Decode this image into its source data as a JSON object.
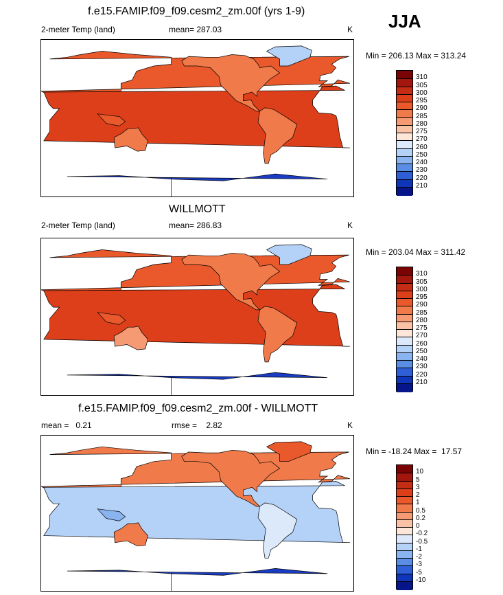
{
  "season": "JJA",
  "panels": [
    {
      "title": "f.e15.FAMIP.f09_f09.cesm2_zm.00f (yrs 1-9)",
      "left_label": "2-meter Temp (land)",
      "center_label": "mean= 287.03",
      "units": "K",
      "range_text": "Min = 206.13 Max = 313.24",
      "colorbar": {
        "labels": [
          "310",
          "305",
          "300",
          "295",
          "290",
          "285",
          "280",
          "275",
          "270",
          "260",
          "250",
          "240",
          "230",
          "220",
          "210"
        ],
        "colors": [
          "#7a0404",
          "#a3170e",
          "#c52c14",
          "#dd3f1a",
          "#e9592b",
          "#f07a4a",
          "#f59a73",
          "#f9c2a4",
          "#fbe6d8",
          "#dce9fb",
          "#b4d1f7",
          "#8ab4ef",
          "#5a8ee5",
          "#2f5fd6",
          "#0f35b8",
          "#06168a"
        ]
      }
    },
    {
      "title": "WILLMOTT",
      "left_label": "2-meter Temp (land)",
      "center_label": "mean= 286.83",
      "units": "K",
      "range_text": "Min = 203.04 Max = 311.42",
      "colorbar": {
        "labels": [
          "310",
          "305",
          "300",
          "295",
          "290",
          "285",
          "280",
          "275",
          "270",
          "260",
          "250",
          "240",
          "230",
          "220",
          "210"
        ],
        "colors": [
          "#7a0404",
          "#a3170e",
          "#c52c14",
          "#dd3f1a",
          "#e9592b",
          "#f07a4a",
          "#f59a73",
          "#f9c2a4",
          "#fbe6d8",
          "#dce9fb",
          "#b4d1f7",
          "#8ab4ef",
          "#5a8ee5",
          "#2f5fd6",
          "#0f35b8",
          "#06168a"
        ]
      }
    },
    {
      "title": "f.e15.FAMIP.f09_f09.cesm2_zm.00f - WILLMOTT",
      "left_label": "mean =   0.21",
      "center_label": "rmse =    2.82",
      "units": "K",
      "range_text": "Min = -18.24 Max =  17.57",
      "colorbar": {
        "labels": [
          "10",
          "5",
          "3",
          "2",
          "1",
          "0.5",
          "0.2",
          "0",
          "-0.2",
          "-0.5",
          "-1",
          "-2",
          "-3",
          "-5",
          "-10"
        ],
        "colors": [
          "#7a0404",
          "#a3170e",
          "#c52c14",
          "#dd3f1a",
          "#e9592b",
          "#f07a4a",
          "#f59a73",
          "#f9c2a4",
          "#fbe6d8",
          "#dce9fb",
          "#b4d1f7",
          "#8ab4ef",
          "#5a8ee5",
          "#2f5fd6",
          "#0f35b8",
          "#06168a"
        ]
      }
    }
  ],
  "chart_data": [
    {
      "type": "heatmap",
      "title": "f.e15.FAMIP.f09_f09.cesm2_zm.00f (yrs 1-9)",
      "variable": "2-meter Temp (land)",
      "units": "K",
      "mean": 287.03,
      "min": 206.13,
      "max": 313.24,
      "levels": [
        210,
        220,
        230,
        240,
        250,
        260,
        270,
        275,
        280,
        285,
        290,
        295,
        300,
        305,
        310
      ]
    },
    {
      "type": "heatmap",
      "title": "WILLMOTT",
      "variable": "2-meter Temp (land)",
      "units": "K",
      "mean": 286.83,
      "min": 203.04,
      "max": 311.42,
      "levels": [
        210,
        220,
        230,
        240,
        250,
        260,
        270,
        275,
        280,
        285,
        290,
        295,
        300,
        305,
        310
      ]
    },
    {
      "type": "heatmap",
      "title": "f.e15.FAMIP.f09_f09.cesm2_zm.00f - WILLMOTT",
      "units": "K",
      "mean": 0.21,
      "rmse": 2.82,
      "min": -18.24,
      "max": 17.57,
      "levels": [
        -10,
        -5,
        -3,
        -2,
        -1,
        -0.5,
        -0.2,
        0,
        0.2,
        0.5,
        1,
        2,
        3,
        5,
        10
      ]
    }
  ]
}
